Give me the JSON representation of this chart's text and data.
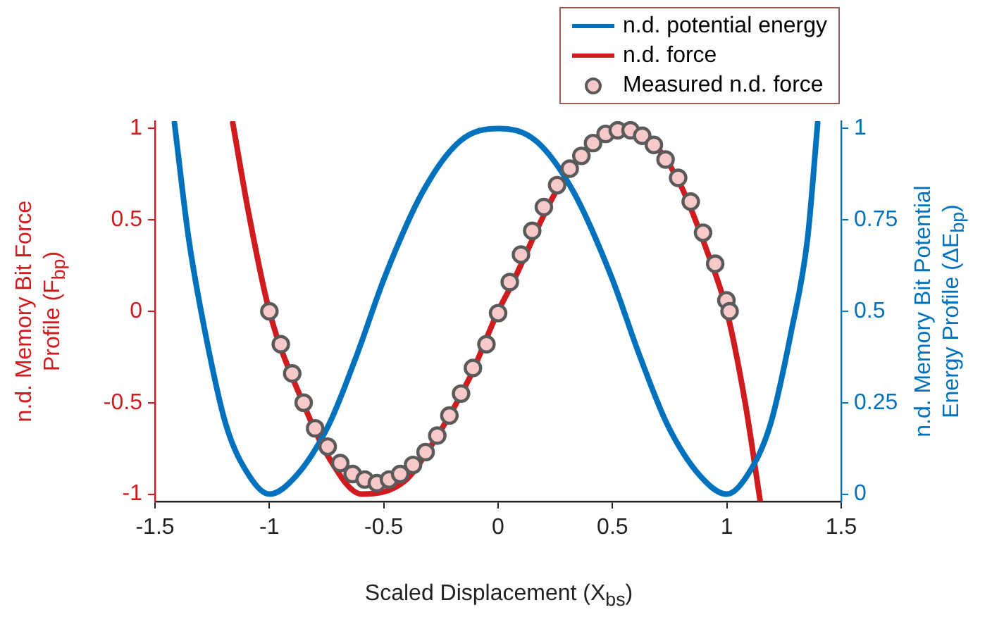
{
  "chart_data": {
    "type": "line",
    "xlabel": "Scaled Displacement (X$_{bs}$)",
    "ylabel": "n.d. Memory Bit Force Profile (F$_{bp}$)",
    "y2label": "n.d. Memory Bit Potential Energy Profile (ΔE$_{bp}$)",
    "xlim": [
      -1.5,
      1.5
    ],
    "xticks": [
      -1.5,
      -1,
      -0.5,
      0,
      0.5,
      1,
      1.5
    ],
    "ylim": [
      -1.04,
      1.04
    ],
    "yticks": [
      -1,
      -0.5,
      0,
      0.5,
      1
    ],
    "y2lim": [
      -0.02,
      1.02
    ],
    "y2ticks": [
      0,
      0.25,
      0.5,
      0.75,
      1
    ],
    "grid": false,
    "legend": "top right",
    "series": [
      {
        "name": "n.d. potential energy",
        "axis": "y2",
        "color": "#0072bd",
        "marker": "none",
        "line_style": "solid",
        "x": [
          -1.415,
          -1.353,
          -1.28,
          -1.19,
          -1.088,
          -1.0,
          -0.883,
          -0.74,
          -0.618,
          -0.495,
          -0.331,
          -0.167,
          0,
          0.167,
          0.331,
          0.495,
          0.618,
          0.74,
          0.883,
          1.0,
          1.088,
          1.19,
          1.28,
          1.353,
          1.397
        ],
        "values": [
          1.015,
          0.7,
          0.44,
          0.19,
          0.05,
          0,
          0.05,
          0.19,
          0.38,
          0.595,
          0.825,
          0.965,
          1.0,
          0.965,
          0.825,
          0.595,
          0.38,
          0.19,
          0.05,
          0,
          0.05,
          0.19,
          0.44,
          0.7,
          1.015
        ]
      },
      {
        "name": "n.d. force",
        "color": "#d01c1f",
        "marker": "none",
        "line_style": "solid",
        "x": [
          -1.16,
          -1.088,
          -1.0,
          -0.853,
          -0.74,
          -0.597,
          -0.41,
          -0.29,
          -0.127,
          0,
          0.057,
          0.26,
          0.425,
          0.548,
          0.67,
          0.794,
          0.916,
          1.0,
          1.08,
          1.146
        ],
        "values": [
          1.03,
          0.52,
          0,
          -0.5,
          -0.8,
          -1.0,
          -0.93,
          -0.73,
          -0.37,
          0,
          0.14,
          0.67,
          0.93,
          0.99,
          0.93,
          0.7,
          0.32,
          0,
          -0.5,
          -1.04
        ]
      },
      {
        "name": "Measured n.d. force",
        "type": "scatter",
        "color": "#f7c9c9",
        "marker": "circle",
        "x": [
          -1.0,
          -0.95,
          -0.9,
          -0.85,
          -0.8,
          -0.745,
          -0.69,
          -0.636,
          -0.583,
          -0.53,
          -0.477,
          -0.428,
          -0.372,
          -0.317,
          -0.266,
          -0.213,
          -0.162,
          -0.11,
          -0.051,
          0,
          0.051,
          0.1,
          0.149,
          0.2,
          0.258,
          0.313,
          0.364,
          0.415,
          0.47,
          0.523,
          0.579,
          0.63,
          0.681,
          0.732,
          0.787,
          0.842,
          0.896,
          0.949,
          0.998,
          1.012
        ],
        "values": [
          0,
          -0.18,
          -0.34,
          -0.5,
          -0.64,
          -0.74,
          -0.83,
          -0.89,
          -0.92,
          -0.94,
          -0.92,
          -0.89,
          -0.84,
          -0.77,
          -0.68,
          -0.57,
          -0.45,
          -0.31,
          -0.18,
          -0.01,
          0.16,
          0.31,
          0.44,
          0.57,
          0.69,
          0.78,
          0.85,
          0.92,
          0.97,
          0.99,
          0.99,
          0.96,
          0.91,
          0.83,
          0.73,
          0.6,
          0.43,
          0.26,
          0.06,
          0
        ]
      }
    ]
  }
}
